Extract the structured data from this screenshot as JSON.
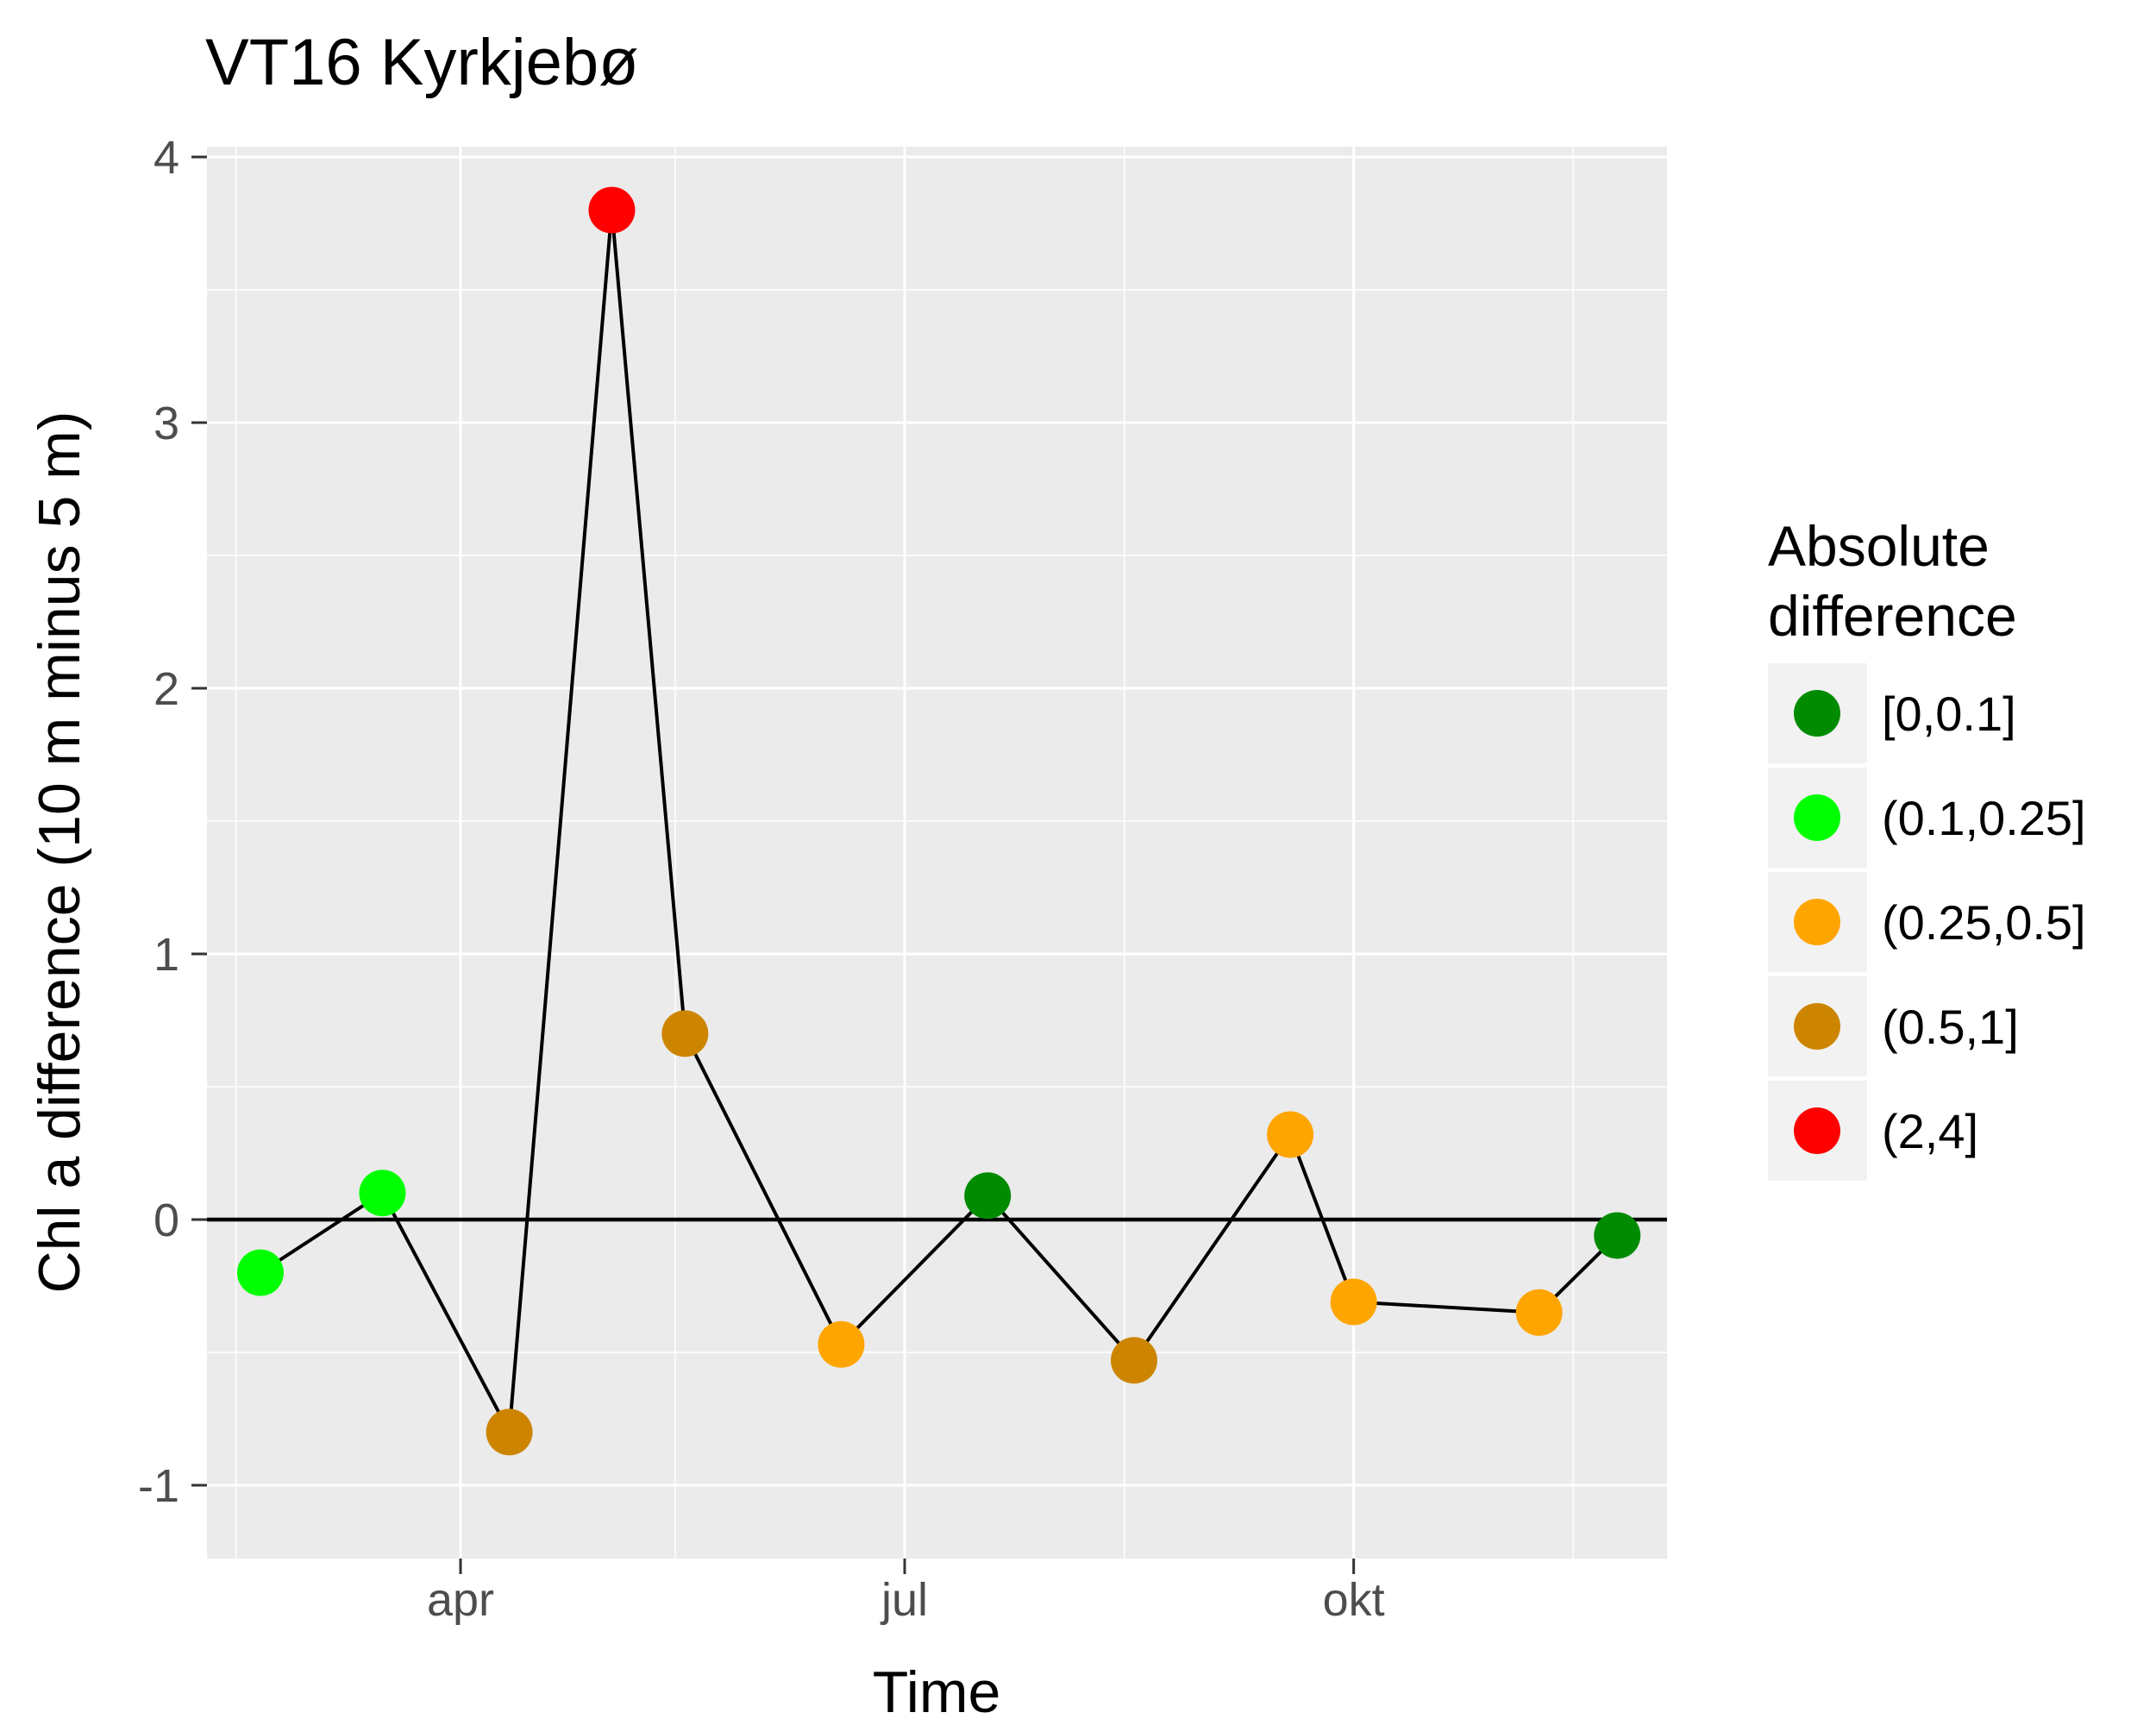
{
  "chart_data": {
    "type": "scatter",
    "title": "VT16 Kyrkjebø",
    "xlabel": "Time",
    "ylabel": "Chl a difference (10 m minus 5 m)",
    "x_ticks": [
      "apr",
      "jul",
      "okt"
    ],
    "y_ticks": [
      "-1",
      "0",
      "1",
      "2",
      "3",
      "4"
    ],
    "ylim": [
      -1.25,
      4.05
    ],
    "grid": true,
    "reference_line_y": 0,
    "legend": {
      "title_lines": [
        "Absolute",
        "difference"
      ],
      "placement": "right",
      "entries": [
        {
          "label": "[0,0.1]",
          "color": "#008B00"
        },
        {
          "label": "(0.1,0.25]",
          "color": "#00FF00"
        },
        {
          "label": "(0.25,0.5]",
          "color": "#FFA500"
        },
        {
          "label": "(0.5,1]",
          "color": "#CD8500"
        },
        {
          "label": "(2,4]",
          "color": "#FF0000"
        }
      ]
    },
    "points": [
      {
        "date": "2016-02-20",
        "value": -0.2,
        "category": "(0.1,0.25]"
      },
      {
        "date": "2016-03-16",
        "value": 0.1,
        "category": "(0.1,0.25]"
      },
      {
        "date": "2016-04-11",
        "value": -0.8,
        "category": "(0.5,1]"
      },
      {
        "date": "2016-05-02",
        "value": 3.8,
        "category": "(2,4]"
      },
      {
        "date": "2016-05-17",
        "value": 0.7,
        "category": "(0.5,1]"
      },
      {
        "date": "2016-06-18",
        "value": -0.47,
        "category": "(0.25,0.5]"
      },
      {
        "date": "2016-07-18",
        "value": 0.09,
        "category": "[0,0.1]"
      },
      {
        "date": "2016-08-17",
        "value": -0.53,
        "category": "(0.5,1]"
      },
      {
        "date": "2016-09-18",
        "value": 0.32,
        "category": "(0.25,0.5]"
      },
      {
        "date": "2016-10-01",
        "value": -0.31,
        "category": "(0.25,0.5]"
      },
      {
        "date": "2016-11-08",
        "value": -0.35,
        "category": "(0.25,0.5]"
      },
      {
        "date": "2016-11-24",
        "value": -0.06,
        "category": "[0,0.1]"
      }
    ]
  }
}
